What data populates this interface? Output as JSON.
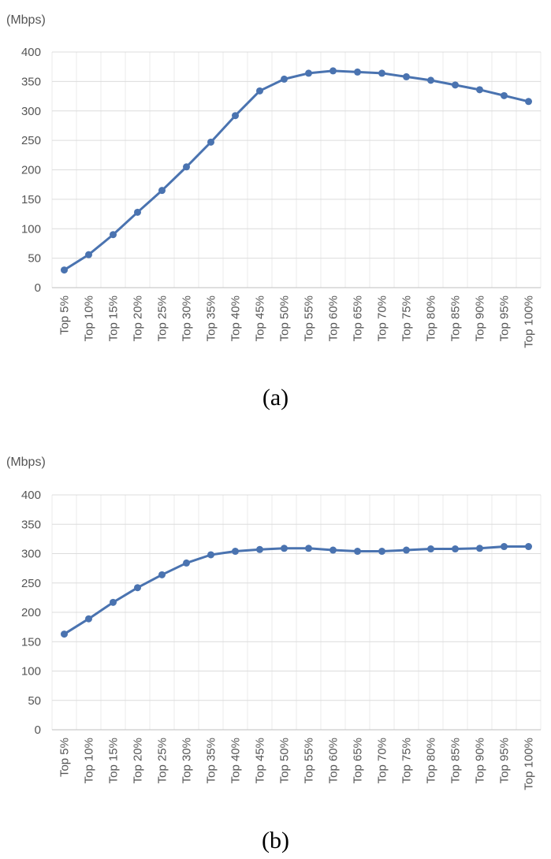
{
  "chart_data": [
    {
      "type": "line",
      "unit_label": "(Mbps)",
      "caption": "(a)",
      "categories": [
        "Top 5%",
        "Top 10%",
        "Top 15%",
        "Top 20%",
        "Top 25%",
        "Top 30%",
        "Top 35%",
        "Top 40%",
        "Top 45%",
        "Top 50%",
        "Top 55%",
        "Top 60%",
        "Top 65%",
        "Top 70%",
        "Top 75%",
        "Top 80%",
        "Top 85%",
        "Top 90%",
        "Top 95%",
        "Top 100%"
      ],
      "values": [
        30,
        56,
        90,
        128,
        165,
        205,
        247,
        292,
        334,
        354,
        364,
        368,
        366,
        364,
        358,
        352,
        344,
        336,
        326,
        316
      ],
      "ylim": [
        0,
        400
      ],
      "yticks": [
        0,
        50,
        100,
        150,
        200,
        250,
        300,
        350,
        400
      ],
      "grid": true,
      "color": "#4a73b0"
    },
    {
      "type": "line",
      "unit_label": "(Mbps)",
      "caption": "(b)",
      "categories": [
        "Top 5%",
        "Top 10%",
        "Top 15%",
        "Top 20%",
        "Top 25%",
        "Top 30%",
        "Top 35%",
        "Top 40%",
        "Top 45%",
        "Top 50%",
        "Top 55%",
        "Top 60%",
        "Top 65%",
        "Top 70%",
        "Top 75%",
        "Top 80%",
        "Top 85%",
        "Top 90%",
        "Top 95%",
        "Top 100%"
      ],
      "values": [
        163,
        189,
        217,
        242,
        264,
        284,
        298,
        304,
        307,
        309,
        309,
        306,
        304,
        304,
        306,
        308,
        308,
        309,
        312,
        312
      ],
      "ylim": [
        0,
        400
      ],
      "yticks": [
        0,
        50,
        100,
        150,
        200,
        250,
        300,
        350,
        400
      ],
      "grid": true,
      "color": "#4a73b0"
    }
  ]
}
